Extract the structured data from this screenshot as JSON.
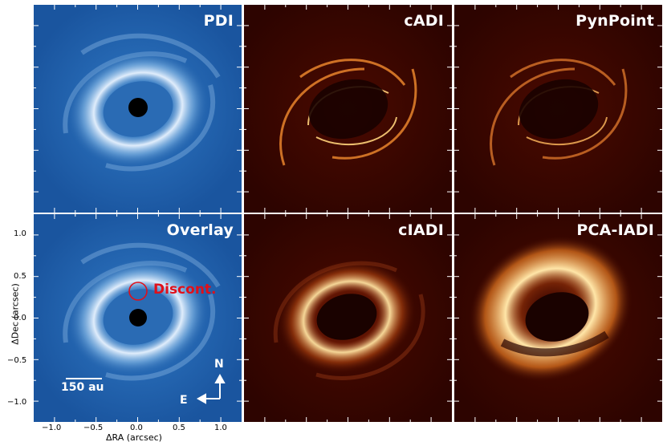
{
  "panels": {
    "pdi": "PDI",
    "cadi": "cADI",
    "pynpoint": "PynPoint",
    "overlay": "Overlay",
    "cladi": "cIADI",
    "pca": "PCA-IADI"
  },
  "annotations": {
    "discont": "Discont.",
    "scale_bar": "150 au",
    "north": "N",
    "east": "E"
  },
  "axes": {
    "xlabel": "ΔRA (arcsec)",
    "ylabel": "ΔDec (arcsec)",
    "xticks": [
      "−1.0",
      "−0.5",
      "0.0",
      "0.5",
      "1.0"
    ],
    "yticks": [
      "1.0",
      "0.5",
      "0.0",
      "−0.5",
      "−1.0"
    ]
  },
  "colors": {
    "pdi_background": "#1e5da6",
    "adi_background": "#3a0600",
    "disc_highlight": "#ffffff",
    "adi_highlight": "#ffd27a",
    "discont_marker": "#e0101a"
  }
}
